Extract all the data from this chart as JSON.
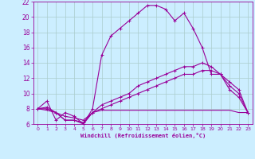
{
  "xlabel": "Windchill (Refroidissement éolien,°C)",
  "bg_color": "#cceeff",
  "grid_color": "#aacccc",
  "line_color": "#990099",
  "xlim": [
    -0.5,
    23.5
  ],
  "ylim": [
    6,
    22
  ],
  "yticks": [
    6,
    8,
    10,
    12,
    14,
    16,
    18,
    20,
    22
  ],
  "xticks": [
    0,
    1,
    2,
    3,
    4,
    5,
    6,
    7,
    8,
    9,
    10,
    11,
    12,
    13,
    14,
    15,
    16,
    17,
    18,
    19,
    20,
    21,
    22,
    23
  ],
  "series": [
    {
      "x": [
        0,
        1,
        2,
        3,
        4,
        5,
        6,
        7,
        8,
        9,
        10,
        11,
        12,
        13,
        14,
        15,
        16,
        17,
        18,
        19,
        20,
        21,
        22,
        23
      ],
      "y": [
        8.0,
        9.0,
        6.5,
        7.5,
        7.0,
        6.0,
        8.0,
        15.0,
        17.5,
        18.5,
        19.5,
        20.5,
        21.5,
        21.5,
        21.0,
        19.5,
        20.5,
        18.5,
        16.0,
        12.5,
        12.5,
        10.5,
        9.5,
        7.5
      ],
      "marker": "+"
    },
    {
      "x": [
        0,
        1,
        2,
        3,
        4,
        5,
        6,
        7,
        8,
        9,
        10,
        11,
        12,
        13,
        14,
        15,
        16,
        17,
        18,
        19,
        20,
        21,
        22,
        23
      ],
      "y": [
        8.0,
        8.2,
        7.5,
        7.0,
        6.8,
        6.5,
        7.5,
        8.5,
        9.0,
        9.5,
        10.0,
        11.0,
        11.5,
        12.0,
        12.5,
        13.0,
        13.5,
        13.5,
        14.0,
        13.5,
        12.5,
        11.5,
        10.5,
        7.5
      ],
      "marker": "+"
    },
    {
      "x": [
        0,
        1,
        2,
        3,
        4,
        5,
        6,
        7,
        8,
        9,
        10,
        11,
        12,
        13,
        14,
        15,
        16,
        17,
        18,
        19,
        20,
        21,
        22,
        23
      ],
      "y": [
        8.0,
        8.0,
        7.5,
        6.5,
        6.5,
        6.2,
        7.5,
        8.0,
        8.5,
        9.0,
        9.5,
        10.0,
        10.5,
        11.0,
        11.5,
        12.0,
        12.5,
        12.5,
        13.0,
        13.0,
        12.5,
        11.0,
        10.0,
        7.5
      ],
      "marker": "+"
    },
    {
      "x": [
        0,
        1,
        2,
        3,
        4,
        5,
        6,
        7,
        8,
        9,
        10,
        11,
        12,
        13,
        14,
        15,
        16,
        17,
        18,
        19,
        20,
        21,
        22,
        23
      ],
      "y": [
        8.0,
        7.8,
        7.5,
        6.5,
        6.5,
        6.0,
        7.5,
        7.8,
        7.8,
        7.8,
        7.8,
        7.8,
        7.8,
        7.8,
        7.8,
        7.8,
        7.8,
        7.8,
        7.8,
        7.8,
        7.8,
        7.8,
        7.5,
        7.5
      ],
      "marker": null
    }
  ]
}
